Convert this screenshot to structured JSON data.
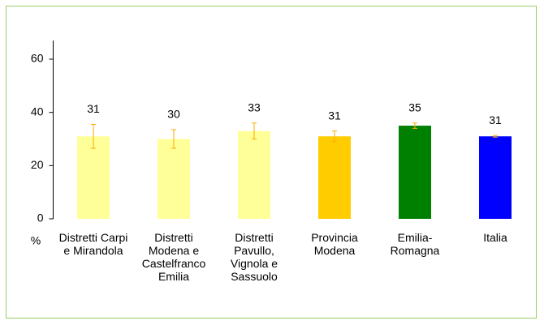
{
  "chart_data": {
    "type": "bar",
    "categories": [
      "Distretti Carpi e Mirandola",
      "Distretti Modena e Castelfranco Emilia",
      "Distretti Pavullo, Vignola e Sassuolo",
      "Provincia Modena",
      "Emilia-Romagna",
      "Italia"
    ],
    "values": [
      31,
      30,
      33,
      31,
      35,
      31
    ],
    "errors": [
      4.5,
      3.5,
      3,
      2,
      1,
      0.3
    ],
    "colors": [
      "#ffff99",
      "#ffff99",
      "#ffff99",
      "#ffcc00",
      "#008000",
      "#0000ff"
    ],
    "y_label": "%",
    "ylim": [
      0,
      60
    ],
    "yticks": [
      0,
      20,
      40,
      60
    ]
  }
}
